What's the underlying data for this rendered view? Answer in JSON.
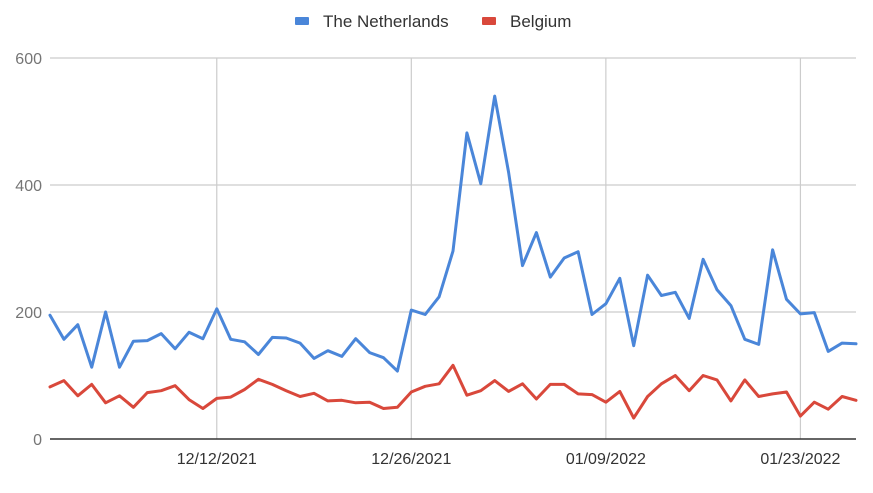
{
  "chart_data": {
    "type": "line",
    "title": "",
    "xlabel": "",
    "ylabel": "",
    "ylim": [
      0,
      600
    ],
    "yticks": [
      0,
      200,
      400,
      600
    ],
    "grid": true,
    "legend_position": "top",
    "x_start": "2021-11-30",
    "x_end": "2022-01-27",
    "x_ticks": [
      {
        "date": "2021-12-12",
        "label": "12/12/2021"
      },
      {
        "date": "2021-12-26",
        "label": "12/26/2021"
      },
      {
        "date": "2022-01-09",
        "label": "01/09/2022"
      },
      {
        "date": "2022-01-23",
        "label": "01/23/2022"
      }
    ],
    "series": [
      {
        "name": "The Netherlands",
        "color": "#4a86d9",
        "values": [
          195,
          157,
          180,
          113,
          200,
          113,
          154,
          155,
          166,
          142,
          168,
          158,
          205,
          157,
          153,
          133,
          160,
          159,
          151,
          127,
          139,
          130,
          158,
          136,
          128,
          107,
          203,
          196,
          224,
          296,
          482,
          402,
          540,
          420,
          273,
          325,
          255,
          285,
          295,
          196,
          213,
          253,
          147,
          258,
          226,
          231,
          190,
          283,
          235,
          210,
          157,
          149,
          298,
          220,
          197,
          199,
          138,
          151,
          150
        ]
      },
      {
        "name": "Belgium",
        "color": "#d9483b",
        "values": [
          82,
          92,
          68,
          86,
          57,
          68,
          50,
          73,
          76,
          84,
          62,
          48,
          64,
          66,
          78,
          94,
          86,
          76,
          67,
          72,
          60,
          61,
          57,
          58,
          48,
          50,
          74,
          83,
          87,
          116,
          69,
          76,
          92,
          75,
          87,
          63,
          86,
          86,
          71,
          70,
          58,
          75,
          33,
          67,
          87,
          100,
          76,
          100,
          93,
          60,
          93,
          67,
          71,
          74,
          36,
          58,
          47,
          67,
          61
        ]
      }
    ]
  }
}
